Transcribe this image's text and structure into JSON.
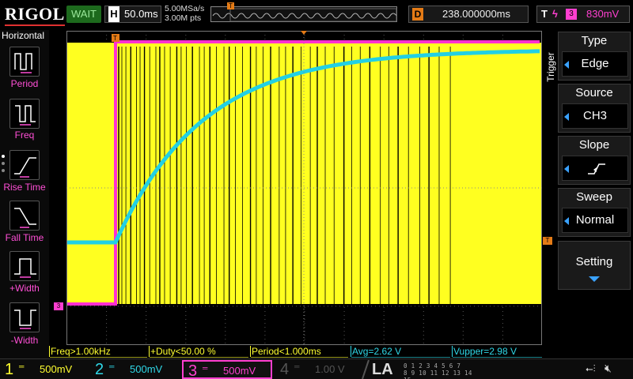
{
  "top": {
    "logo": "RIGOL",
    "run_status": "WAIT",
    "h_label": "H",
    "timebase": "50.0ms",
    "sample_rate": "5.00MSa/s",
    "memory_depth": "3.00M pts",
    "trigger_pos_marker": "T",
    "d_label": "D",
    "delay": "238.000000ms",
    "t_label": "T",
    "trigger_edge": "ϟ",
    "trigger_channel": "3",
    "trigger_level": "830mV"
  },
  "left_panel": {
    "title": "Horizontal",
    "items": [
      {
        "label": "Period"
      },
      {
        "label": "Freq"
      },
      {
        "label": "Rise Time"
      },
      {
        "label": "Fall Time"
      },
      {
        "label": "+Width"
      },
      {
        "label": "-Width"
      }
    ]
  },
  "scope": {
    "trigger_marker": "T",
    "ch3_marker": "3",
    "level_marker": "T"
  },
  "trigger_menu": {
    "vertical_label": "Trigger",
    "type_title": "Type",
    "type_value": "Edge",
    "source_title": "Source",
    "source_value": "CH3",
    "slope_title": "Slope",
    "slope_value": "rising-edge",
    "sweep_title": "Sweep",
    "sweep_value": "Normal",
    "setting_title": "Setting"
  },
  "measurements": [
    {
      "text": "Freq>1.00kHz",
      "color": "yellow"
    },
    {
      "text": "+Duty<50.00 %",
      "color": "yellow"
    },
    {
      "text": "Period<1.000ms",
      "color": "yellow"
    },
    {
      "text": "Avg=2.62 V",
      "color": "cyan"
    },
    {
      "text": "Vupper=2.98 V",
      "color": "cyan"
    }
  ],
  "channels": [
    {
      "num": "1",
      "scale": "500mV",
      "color": "#ffff30"
    },
    {
      "num": "2",
      "scale": "500mV",
      "color": "#2fd8e8"
    },
    {
      "num": "3",
      "scale": "500mV",
      "color": "#ff3fd0"
    },
    {
      "num": "4",
      "scale": "1.00 V",
      "color": "#555555"
    }
  ],
  "la": {
    "label": "LA",
    "row1": "0 1 2 3   4 5 6 7",
    "row2": "8 9 10 11 12 13 14 15"
  },
  "colors": {
    "ch1": "#ffff30",
    "ch2": "#2fd8e8",
    "ch3": "#ff3fd0",
    "trigger": "#e47b16"
  }
}
